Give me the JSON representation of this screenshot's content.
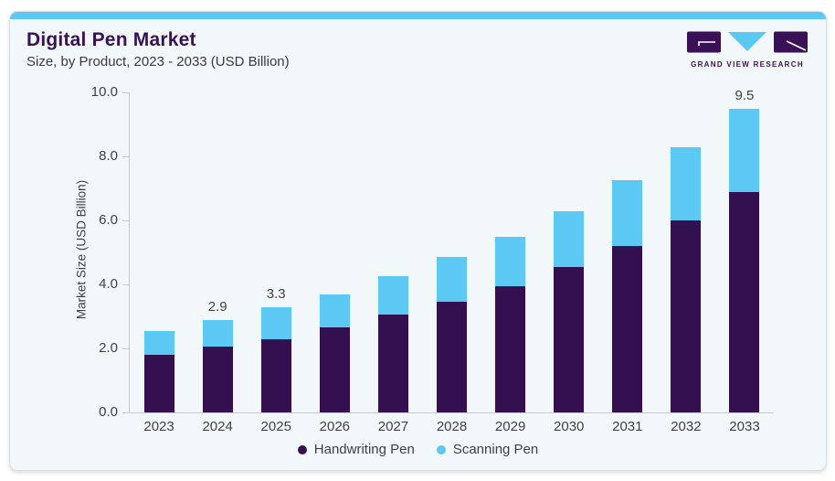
{
  "header": {
    "title": "Digital Pen Market",
    "subtitle": "Size, by Product, 2023 - 2033 (USD Billion)"
  },
  "logo": {
    "name": "Grand View Research logo",
    "text": "GRAND VIEW RESEARCH"
  },
  "colors": {
    "accent_bar": "#5BC8F3",
    "title_purple": "#3A1056",
    "handwriting_pen": "#331150",
    "scanning_pen": "#5BC9F4",
    "card_bg": "#F2F7FA",
    "axis_line": "#C4CAD3",
    "tick_text": "#3F3F42"
  },
  "chart_data": {
    "type": "bar",
    "stacked": true,
    "title": "Digital Pen Market",
    "subtitle": "Size, by Product, 2023 - 2033 (USD Billion)",
    "categories": [
      "2023",
      "2024",
      "2025",
      "2026",
      "2027",
      "2028",
      "2029",
      "2030",
      "2031",
      "2032",
      "2033"
    ],
    "series": [
      {
        "name": "Handwriting Pen",
        "color": "#331150",
        "values": [
          1.8,
          2.05,
          2.3,
          2.65,
          3.05,
          3.45,
          3.95,
          4.55,
          5.2,
          6.0,
          6.9
        ]
      },
      {
        "name": "Scanning Pen",
        "color": "#5BC9F4",
        "values": [
          0.75,
          0.85,
          1.0,
          1.05,
          1.2,
          1.4,
          1.55,
          1.75,
          2.05,
          2.3,
          2.6
        ]
      }
    ],
    "totals": [
      2.55,
      2.9,
      3.3,
      3.7,
      4.25,
      4.85,
      5.5,
      6.3,
      7.25,
      8.3,
      9.5
    ],
    "total_labels": {
      "2024": "2.9",
      "2025": "3.3",
      "2033": "9.5"
    },
    "xlabel": "",
    "ylabel": "Market Size (USD Billion)",
    "ylim": [
      0,
      10
    ],
    "yticks": [
      "0.0",
      "2.0",
      "4.0",
      "6.0",
      "8.0",
      "10.0"
    ],
    "grid": false,
    "legend_position": "bottom"
  }
}
